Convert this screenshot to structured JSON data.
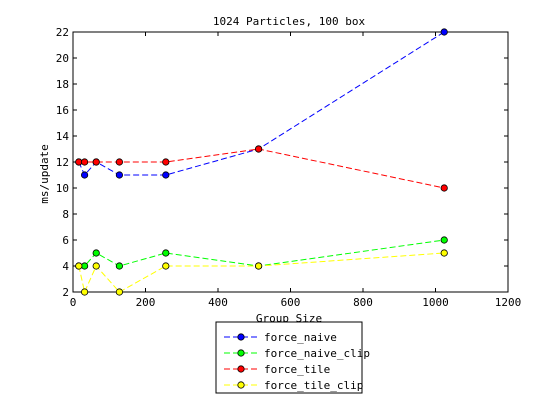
{
  "chart_data": {
    "type": "line",
    "title": "1024 Particles, 100 box",
    "xlabel": "Group Size",
    "ylabel": "ms/update",
    "xlim": [
      0,
      1200
    ],
    "ylim": [
      2,
      22
    ],
    "xticks": [
      0,
      200,
      400,
      600,
      800,
      1000,
      1200
    ],
    "yticks": [
      2,
      4,
      6,
      8,
      10,
      12,
      14,
      16,
      18,
      20,
      22
    ],
    "grid": false,
    "legend_position": "bottom-center, outside the axes",
    "series": [
      {
        "name": "force_naive",
        "color": "#0000ff",
        "marker_color": "#0000ff",
        "x": [
          16,
          32,
          64,
          128,
          256,
          512,
          1024
        ],
        "y": [
          12,
          11,
          12,
          11,
          11,
          13,
          22
        ]
      },
      {
        "name": "force_naive_clip",
        "color": "#00ff00",
        "marker_color": "#00ff00",
        "x": [
          16,
          32,
          64,
          128,
          256,
          512,
          1024
        ],
        "y": [
          4,
          4,
          5,
          4,
          5,
          4,
          6
        ]
      },
      {
        "name": "force_tile",
        "color": "#ff0000",
        "marker_color": "#ff0000",
        "x": [
          16,
          32,
          64,
          128,
          256,
          512,
          1024
        ],
        "y": [
          12,
          12,
          12,
          12,
          12,
          13,
          10
        ]
      },
      {
        "name": "force_tile_clip",
        "color": "#ffff00",
        "marker_color": "#ffff00",
        "x": [
          16,
          32,
          64,
          128,
          256,
          512,
          1024
        ],
        "y": [
          4,
          2,
          4,
          2,
          4,
          4,
          5
        ]
      }
    ]
  }
}
